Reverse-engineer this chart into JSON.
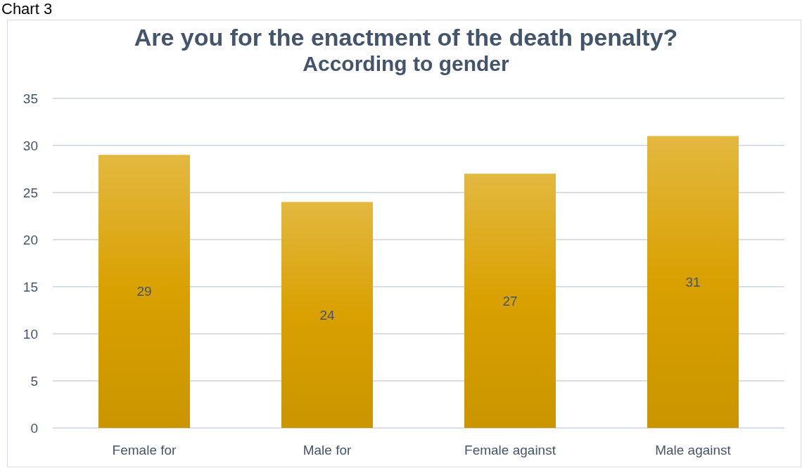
{
  "chart_data": {
    "type": "bar",
    "title": "Are you for the enactment of the death penalty?",
    "subtitle": "According to gender",
    "annotations": [
      "Chart 3"
    ],
    "categories": [
      "Female for",
      "Male for",
      "Female against",
      "Male against"
    ],
    "values": [
      29,
      24,
      27,
      31
    ],
    "color": "#d9a000",
    "ylim": [
      0,
      35
    ],
    "yticks": [
      0,
      5,
      10,
      15,
      20,
      25,
      30,
      35
    ],
    "grid": "y",
    "data_labels": true
  }
}
